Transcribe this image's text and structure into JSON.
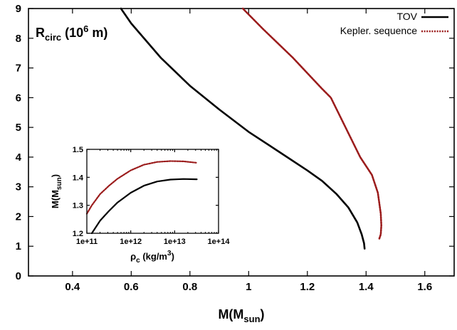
{
  "chart_data": [
    {
      "type": "line",
      "title": "",
      "annotation": {
        "main": "R",
        "sub": "circ",
        "open": " (10",
        "sup": "6",
        "close": " m)"
      },
      "xlabel": {
        "main": "M(M",
        "sub": "sun",
        "close": ")"
      },
      "ylabel": "",
      "xlim": [
        0.25,
        1.7
      ],
      "ylim": [
        0,
        9
      ],
      "xticks": [
        "0.4",
        "0.6",
        "0.8",
        "1",
        "1.2",
        "1.4",
        "1.6"
      ],
      "xtick_values": [
        0.4,
        0.6,
        0.8,
        1.0,
        1.2,
        1.4,
        1.6
      ],
      "yticks": [
        "0",
        "1",
        "2",
        "3",
        "4",
        "5",
        "6",
        "7",
        "8",
        "9"
      ],
      "ytick_values": [
        0,
        1,
        2,
        3,
        4,
        5,
        6,
        7,
        8,
        9
      ],
      "legend_position": "top-right",
      "series": [
        {
          "name": "TOV",
          "color": "#000000",
          "dash": "solid",
          "x": [
            0.565,
            0.6,
            0.7,
            0.8,
            0.9,
            1.0,
            1.1,
            1.2,
            1.25,
            1.3,
            1.34,
            1.37,
            1.385,
            1.393,
            1.395
          ],
          "y": [
            9.0,
            8.5,
            7.35,
            6.4,
            5.6,
            4.85,
            4.2,
            3.55,
            3.2,
            2.75,
            2.3,
            1.8,
            1.4,
            1.1,
            0.92
          ]
        },
        {
          "name": "Kepler. sequence",
          "color": "#9b1c1c",
          "dash": "dotted",
          "x": [
            0.98,
            1.05,
            1.15,
            1.25,
            1.28,
            1.33,
            1.38,
            1.42,
            1.44,
            1.45,
            1.452,
            1.45,
            1.445
          ],
          "y": [
            9.0,
            8.3,
            7.35,
            6.3,
            6.0,
            5.0,
            4.0,
            3.4,
            2.8,
            2.1,
            1.7,
            1.4,
            1.25
          ]
        }
      ]
    },
    {
      "type": "line",
      "title": "",
      "xlabel": {
        "main": "ρ",
        "sub": "c",
        "open": " (kg/m",
        "sup": "3",
        "close": ")"
      },
      "ylabel": {
        "main": "M(M",
        "sub": "sun",
        "close": ")"
      },
      "xscale": "log",
      "xlim": [
        100000000000.0,
        100000000000000.0
      ],
      "ylim": [
        1.2,
        1.5
      ],
      "xticks": [
        "1e+11",
        "1e+12",
        "1e+13",
        "1e+14"
      ],
      "xtick_values": [
        100000000000.0,
        1000000000000.0,
        10000000000000.0,
        100000000000000.0
      ],
      "yticks": [
        "1.2",
        "1.3",
        "1.4",
        "1.5"
      ],
      "ytick_values": [
        1.2,
        1.3,
        1.4,
        1.5
      ],
      "series": [
        {
          "name": "TOV",
          "color": "#000000",
          "dash": "solid",
          "x": [
            130000000000.0,
            200000000000.0,
            320000000000.0,
            500000000000.0,
            1000000000000.0,
            2000000000000.0,
            4000000000000.0,
            8000000000000.0,
            16000000000000.0,
            32000000000000.0
          ],
          "y": [
            1.2,
            1.245,
            1.28,
            1.31,
            1.345,
            1.37,
            1.385,
            1.392,
            1.394,
            1.393
          ]
        },
        {
          "name": "Kepler. sequence",
          "color": "#9b1c1c",
          "dash": "dotted",
          "x": [
            100000000000.0,
            130000000000.0,
            200000000000.0,
            320000000000.0,
            500000000000.0,
            1000000000000.0,
            2000000000000.0,
            4000000000000.0,
            8000000000000.0,
            16000000000000.0,
            32000000000000.0
          ],
          "y": [
            1.27,
            1.3,
            1.34,
            1.37,
            1.395,
            1.425,
            1.445,
            1.455,
            1.458,
            1.457,
            1.452
          ]
        }
      ]
    }
  ]
}
